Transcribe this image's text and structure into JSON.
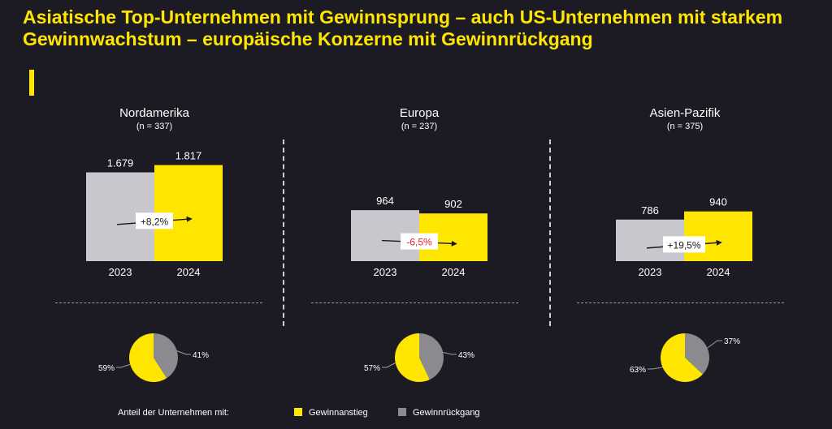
{
  "title": "Asiatische Top-Unternehmen mit Gewinnsprung – auch US-Unternehmen mit starkem Gewinnwachstum – europäische Konzerne mit Gewinnrückgang",
  "colors": {
    "background": "#1c1b24",
    "accent": "#ffe600",
    "bar_2023": "#c8c7cd",
    "bar_2024": "#ffe600",
    "pie_gewinnanstieg": "#ffe600",
    "pie_gewinnrueckgang": "#8a8a8f",
    "negative_change": "#e8202a"
  },
  "legend": {
    "label": "Anteil der Unternehmen mit:",
    "items": [
      {
        "name": "Gewinnanstieg",
        "color": "#ffe600"
      },
      {
        "name": "Gewinnrückgang",
        "color": "#8a8a8f"
      }
    ]
  },
  "chart_data": [
    {
      "type": "bar",
      "region": "Nordamerika",
      "n_label": "(n = 337)",
      "categories": [
        "2023",
        "2024"
      ],
      "values": [
        1679,
        1817
      ],
      "value_labels": [
        "1.679",
        "1.817"
      ],
      "change_label": "+8,2%",
      "change_negative": false
    },
    {
      "type": "bar",
      "region": "Europa",
      "n_label": "(n = 237)",
      "categories": [
        "2023",
        "2024"
      ],
      "values": [
        964,
        902
      ],
      "value_labels": [
        "964",
        "902"
      ],
      "change_label": "-6,5%",
      "change_negative": true
    },
    {
      "type": "bar",
      "region": "Asien-Pazifik",
      "n_label": "(n = 375)",
      "categories": [
        "2023",
        "2024"
      ],
      "values": [
        786,
        940
      ],
      "value_labels": [
        "786",
        "940"
      ],
      "change_label": "+19,5%",
      "change_negative": false
    },
    {
      "type": "pie",
      "region": "Nordamerika",
      "slices": [
        {
          "name": "Gewinnanstieg",
          "value": 59,
          "label": "59%"
        },
        {
          "name": "Gewinnrückgang",
          "value": 41,
          "label": "41%"
        }
      ]
    },
    {
      "type": "pie",
      "region": "Europa",
      "slices": [
        {
          "name": "Gewinnanstieg",
          "value": 57,
          "label": "57%"
        },
        {
          "name": "Gewinnrückgang",
          "value": 43,
          "label": "43%"
        }
      ]
    },
    {
      "type": "pie",
      "region": "Asien-Pazifik",
      "slices": [
        {
          "name": "Gewinnanstieg",
          "value": 63,
          "label": "63%"
        },
        {
          "name": "Gewinnrückgang",
          "value": 37,
          "label": "37%"
        }
      ]
    }
  ]
}
